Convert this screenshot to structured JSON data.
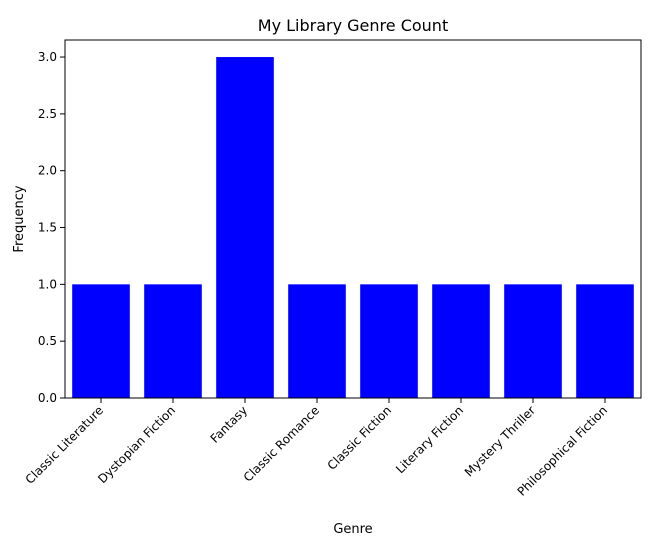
{
  "chart_data": {
    "type": "bar",
    "title": "My Library Genre Count",
    "xlabel": "Genre",
    "ylabel": "Frequency",
    "categories": [
      "Classic Literature",
      "Dystopian Fiction",
      "Fantasy",
      "Classic Romance",
      "Classic Fiction",
      "Literary Fiction",
      "Mystery Thriller",
      "Philosophical Fiction"
    ],
    "values": [
      1,
      1,
      3,
      1,
      1,
      1,
      1,
      1
    ],
    "ylim": [
      0,
      3.15
    ],
    "yticks": [
      "0.0",
      "0.5",
      "1.0",
      "1.5",
      "2.0",
      "2.5",
      "3.0"
    ],
    "bar_color": "#0000ff",
    "grid": false,
    "legend": "none"
  }
}
